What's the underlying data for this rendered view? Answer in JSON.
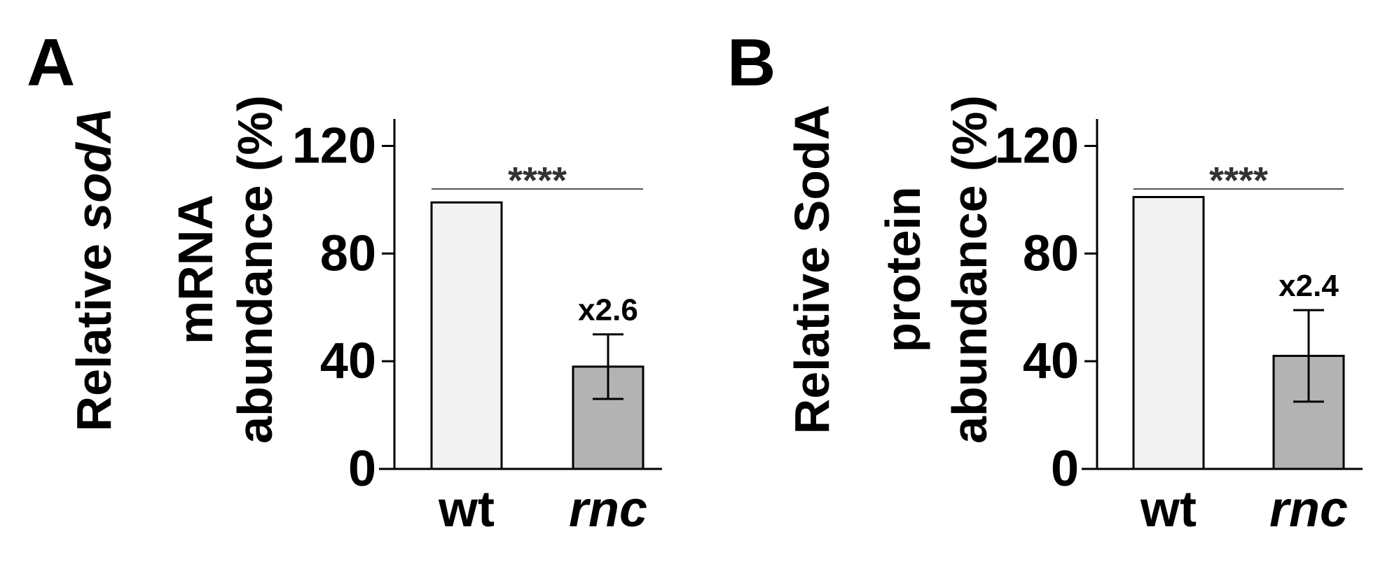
{
  "chart_data": [
    {
      "type": "bar",
      "panel": "A",
      "ylabel_lines": [
        [
          {
            "text": "Relative "
          },
          {
            "text": "sodA",
            "italic": true
          }
        ],
        [
          {
            "text": "mRNA"
          }
        ],
        [
          {
            "text": "abundance (%)"
          }
        ]
      ],
      "categories": [
        {
          "label": "wt",
          "italic": false
        },
        {
          "label": "rnc",
          "italic": true
        }
      ],
      "values": [
        99,
        38
      ],
      "error": [
        null,
        12
      ],
      "bar_colors": [
        "#f2f2f2",
        "#b3b3b3"
      ],
      "annotations": [
        "",
        "x2.6"
      ],
      "significance": "****",
      "ylim": [
        0,
        130
      ],
      "yticks": [
        0,
        40,
        80,
        120
      ],
      "grid": false
    },
    {
      "type": "bar",
      "panel": "B",
      "ylabel_lines": [
        [
          {
            "text": "Relative SodA"
          }
        ],
        [
          {
            "text": "protein"
          }
        ],
        [
          {
            "text": "abundance (%)"
          }
        ]
      ],
      "categories": [
        {
          "label": "wt",
          "italic": false
        },
        {
          "label": "rnc",
          "italic": true
        }
      ],
      "values": [
        101,
        42
      ],
      "error": [
        null,
        17
      ],
      "bar_colors": [
        "#f2f2f2",
        "#b3b3b3"
      ],
      "annotations": [
        "",
        "x2.4"
      ],
      "significance": "****",
      "ylim": [
        0,
        130
      ],
      "yticks": [
        0,
        40,
        80,
        120
      ],
      "grid": false
    }
  ]
}
